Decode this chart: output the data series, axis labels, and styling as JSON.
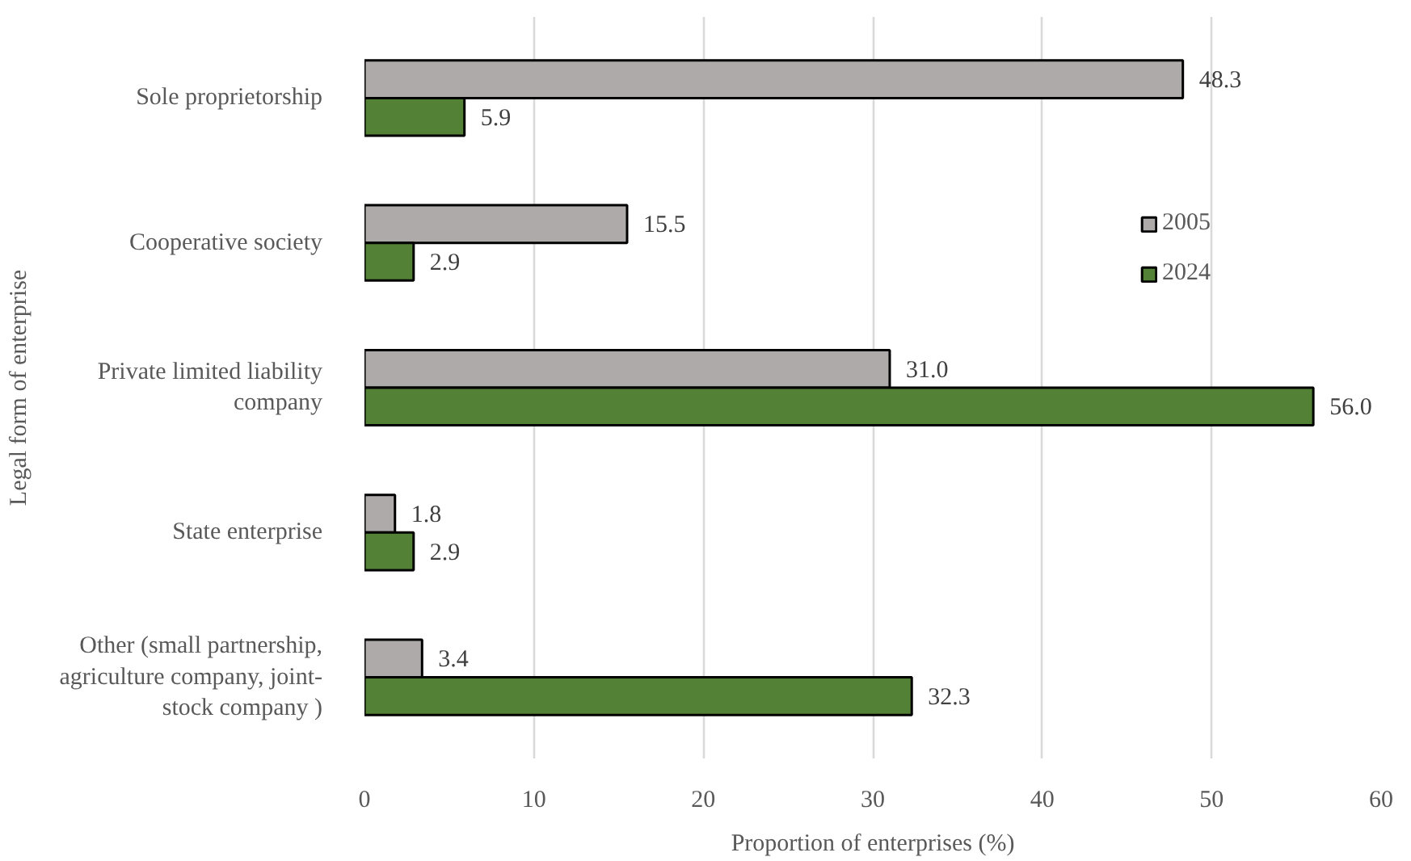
{
  "chart_data": {
    "type": "bar",
    "orientation": "horizontal",
    "xlabel": "Proportion of enterprises (%)",
    "ylabel": "Legal form of enterprise",
    "categories": [
      "Sole proprietorship",
      "Cooperative society",
      "Private limited liability\ncompany",
      "State enterprise",
      "Other (small partnership,\nagriculture company, joint-\nstock company )"
    ],
    "series": [
      {
        "name": "2005",
        "color": "#aeaaaa",
        "values": [
          48.3,
          15.5,
          31.0,
          1.8,
          3.4
        ],
        "value_labels": [
          "48.3",
          "15.5",
          "31.0",
          "1.8",
          "3.4"
        ]
      },
      {
        "name": "2024",
        "color": "#538135",
        "values": [
          5.9,
          2.9,
          56.0,
          2.9,
          32.3
        ],
        "value_labels": [
          "5.9",
          "2.9",
          "56.0",
          "2.9",
          "32.3"
        ]
      }
    ],
    "xlim": [
      0,
      60
    ],
    "xticks": [
      0,
      10,
      20,
      30,
      40,
      50,
      60
    ],
    "grid": "x",
    "legend": "top right"
  }
}
